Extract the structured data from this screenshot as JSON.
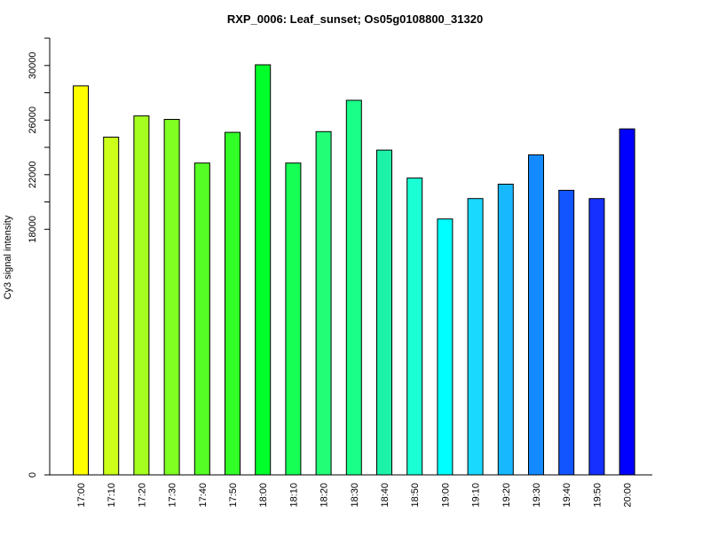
{
  "chart_data": {
    "type": "bar",
    "title": "RXP_0006: Leaf_sunset; Os05g0108800_31320",
    "xlabel": "",
    "ylabel": "Cy3 signal intensity",
    "categories": [
      "17:00",
      "17:10",
      "17:20",
      "17:30",
      "17:40",
      "17:50",
      "18:00",
      "18:10",
      "18:20",
      "18:30",
      "18:40",
      "18:50",
      "19:00",
      "19:10",
      "19:20",
      "19:30",
      "19:40",
      "19:50",
      "20:00"
    ],
    "values": [
      28500,
      24750,
      26300,
      26050,
      22850,
      25100,
      30050,
      22850,
      25150,
      27450,
      23800,
      21750,
      18750,
      20250,
      21300,
      23450,
      20850,
      20250,
      25350
    ],
    "colors": [
      "#FFFF00",
      "#CCFF1A",
      "#A5FF1F",
      "#7FFF22",
      "#55FF25",
      "#33FF28",
      "#00FF2A",
      "#15FF55",
      "#22FF77",
      "#1AFF88",
      "#1CF2A8",
      "#1AFFD4",
      "#00FFFF",
      "#19D9FF",
      "#18B8FF",
      "#138AFF",
      "#1255FF",
      "#1530FF",
      "#0000FF"
    ],
    "ylim": [
      0,
      32000
    ],
    "y_ticks": [
      0,
      18000,
      22000,
      26000,
      30000
    ],
    "y_tick_labels": [
      "0",
      "18000",
      "22000",
      "26000",
      "30000"
    ],
    "grid": false,
    "legend": "none"
  }
}
